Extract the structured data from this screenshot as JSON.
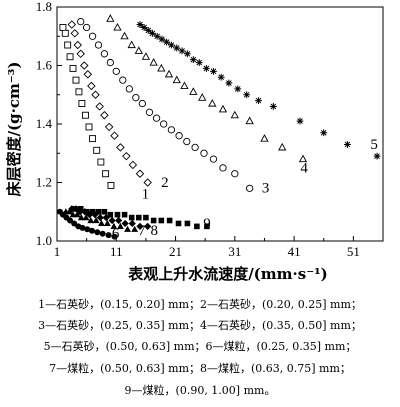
{
  "chart_data": {
    "type": "scatter",
    "xlabel": "表观上升水流速度/(mm·s⁻¹)",
    "ylabel": "床层密度/(g·cm⁻³)",
    "xlim": [
      1,
      56
    ],
    "ylim": [
      1.0,
      1.8
    ],
    "x_ticks": [
      "1",
      "11",
      "21",
      "31",
      "41",
      "51"
    ],
    "y_ticks": [
      "1.0",
      "1.2",
      "1.4",
      "1.6",
      "1.8"
    ],
    "x_tick_values": [
      1,
      11,
      21,
      31,
      41,
      51
    ],
    "y_tick_values": [
      1.0,
      1.2,
      1.4,
      1.6,
      1.8
    ],
    "grid": false,
    "series": [
      {
        "name": "1",
        "marker": "square-open",
        "x": [
          2.0,
          2.4,
          2.8,
          3.2,
          3.7,
          4.2,
          4.7,
          5.2,
          5.8,
          6.4,
          7.0,
          7.7,
          8.4,
          9.2,
          10.1
        ],
        "y": [
          1.73,
          1.71,
          1.67,
          1.63,
          1.59,
          1.55,
          1.51,
          1.47,
          1.43,
          1.39,
          1.35,
          1.31,
          1.27,
          1.23,
          1.19
        ]
      },
      {
        "name": "2",
        "marker": "diamond-open",
        "x": [
          3.5,
          4.0,
          4.5,
          5.0,
          5.6,
          6.2,
          6.8,
          7.5,
          8.2,
          9.0,
          9.8,
          10.7,
          11.7,
          12.7,
          13.8,
          15.0,
          16.3
        ],
        "y": [
          1.74,
          1.71,
          1.67,
          1.64,
          1.6,
          1.57,
          1.53,
          1.5,
          1.46,
          1.43,
          1.39,
          1.36,
          1.32,
          1.29,
          1.26,
          1.23,
          1.2
        ]
      },
      {
        "name": "3",
        "marker": "circle-open",
        "x": [
          5.0,
          6.0,
          7.0,
          8.0,
          9.0,
          10.0,
          11.0,
          12.1,
          13.2,
          14.3,
          15.4,
          16.6,
          17.8,
          19.0,
          20.3,
          21.6,
          22.9,
          24.3,
          25.8,
          27.4,
          29.0,
          31.0,
          33.5
        ],
        "y": [
          1.75,
          1.73,
          1.7,
          1.67,
          1.64,
          1.61,
          1.58,
          1.55,
          1.52,
          1.49,
          1.47,
          1.44,
          1.42,
          1.4,
          1.38,
          1.36,
          1.34,
          1.32,
          1.3,
          1.28,
          1.25,
          1.23,
          1.18
        ]
      },
      {
        "name": "4",
        "marker": "triangle-open",
        "x": [
          10.0,
          11.2,
          12.4,
          13.6,
          14.8,
          16.0,
          17.3,
          18.6,
          19.9,
          21.2,
          22.5,
          24.0,
          25.5,
          27.2,
          29.0,
          31.0,
          33.5,
          36.0,
          39.0,
          42.5
        ],
        "y": [
          1.76,
          1.73,
          1.7,
          1.67,
          1.65,
          1.63,
          1.61,
          1.59,
          1.57,
          1.55,
          1.53,
          1.51,
          1.49,
          1.47,
          1.45,
          1.43,
          1.41,
          1.35,
          1.32,
          1.28
        ]
      },
      {
        "name": "5",
        "marker": "asterisk",
        "x": [
          15.0,
          15.7,
          16.4,
          17.1,
          17.9,
          18.7,
          19.5,
          20.3,
          21.2,
          22.1,
          23.0,
          24.0,
          25.0,
          26.2,
          27.4,
          28.7,
          30.0,
          31.5,
          33.0,
          35.0,
          37.5,
          42.0,
          46.0,
          50.0,
          55.0
        ],
        "y": [
          1.74,
          1.73,
          1.72,
          1.71,
          1.7,
          1.69,
          1.68,
          1.67,
          1.66,
          1.65,
          1.64,
          1.62,
          1.61,
          1.59,
          1.58,
          1.56,
          1.54,
          1.52,
          1.5,
          1.48,
          1.46,
          1.41,
          1.37,
          1.33,
          1.29
        ]
      },
      {
        "name": "6",
        "marker": "circle-filled",
        "x": [
          1.5,
          2.0,
          2.6,
          3.2,
          3.9,
          4.6,
          5.3,
          6.1,
          6.9,
          7.8,
          8.7,
          9.7,
          10.7
        ],
        "y": [
          1.1,
          1.09,
          1.08,
          1.07,
          1.06,
          1.05,
          1.045,
          1.04,
          1.035,
          1.03,
          1.025,
          1.02,
          1.015
        ]
      },
      {
        "name": "7",
        "marker": "triangle-filled",
        "x": [
          2.5,
          3.1,
          3.7,
          4.4,
          5.1,
          5.9,
          6.7,
          7.6,
          8.5,
          9.5,
          10.6,
          11.7,
          12.9,
          14.1
        ],
        "y": [
          1.1,
          1.1,
          1.09,
          1.09,
          1.08,
          1.08,
          1.07,
          1.07,
          1.06,
          1.06,
          1.05,
          1.05,
          1.04,
          1.04
        ]
      },
      {
        "name": "8",
        "marker": "diamond-filled",
        "x": [
          3.5,
          4.2,
          4.9,
          5.7,
          6.5,
          7.4,
          8.3,
          9.3,
          10.3,
          11.4,
          12.5,
          13.7,
          15.0,
          16.3
        ],
        "y": [
          1.11,
          1.11,
          1.1,
          1.1,
          1.09,
          1.09,
          1.08,
          1.08,
          1.07,
          1.07,
          1.06,
          1.06,
          1.05,
          1.05
        ]
      },
      {
        "name": "9",
        "marker": "square-filled",
        "x": [
          4.0,
          5.0,
          6.0,
          7.0,
          8.0,
          9.0,
          10.0,
          11.2,
          12.4,
          13.6,
          14.8,
          16.0,
          17.3,
          18.6,
          20.0,
          21.5,
          23.0,
          24.6,
          26.3
        ],
        "y": [
          1.11,
          1.11,
          1.1,
          1.1,
          1.1,
          1.1,
          1.09,
          1.09,
          1.09,
          1.08,
          1.08,
          1.08,
          1.07,
          1.07,
          1.07,
          1.06,
          1.06,
          1.05,
          1.05
        ]
      }
    ],
    "curve_labels": [
      {
        "text": "1",
        "x": 15.9,
        "y": 1.145
      },
      {
        "text": "2",
        "x": 19.2,
        "y": 1.185
      },
      {
        "text": "3",
        "x": 36.2,
        "y": 1.165
      },
      {
        "text": "4",
        "x": 42.7,
        "y": 1.235
      },
      {
        "text": "5",
        "x": 54.5,
        "y": 1.315
      },
      {
        "text": "6",
        "x": 10.9,
        "y": 1.01
      },
      {
        "text": "7",
        "x": 15.3,
        "y": 1.02
      },
      {
        "text": "8",
        "x": 17.4,
        "y": 1.02
      },
      {
        "text": "9",
        "x": 26.3,
        "y": 1.045
      }
    ]
  },
  "caption": [
    "1—石英砂，(0.15, 0.20] mm；2—石英砂，(0.20, 0.25] mm；",
    "3—石英砂，(0.25, 0.35] mm；4—石英砂，(0.35, 0.50] mm；",
    "5—石英砂，(0.50, 0.63] mm；6—煤粒，(0.25, 0.35] mm；",
    "7—煤粒，(0.50, 0.63] mm；8—煤粒，(0.63, 0.75] mm；",
    "9—煤粒，(0.90, 1.00] mm。"
  ]
}
